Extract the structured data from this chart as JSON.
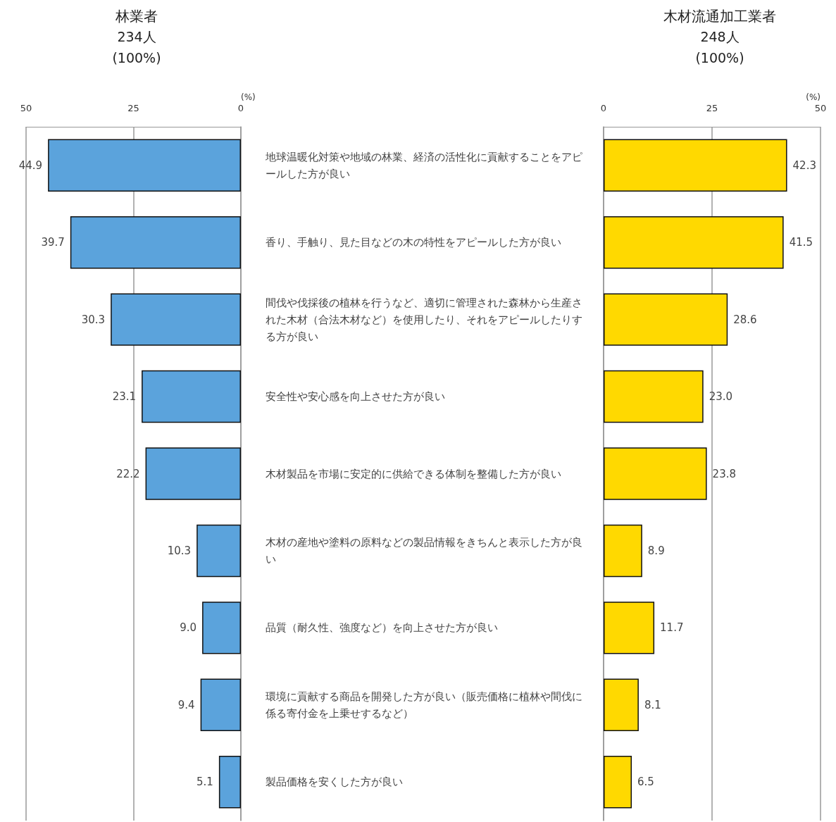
{
  "chart_data": [
    {
      "type": "bar",
      "orientation": "horizontal",
      "title": "林業者",
      "subtitle": "234人\n(100%)",
      "xlabel": "(%)",
      "categories": [
        "地球温暖化対策や地域の林業、経済の活性化に貢献することをアピールした方が良い",
        "香り、手触り、見た目などの木の特性をアピールした方が良い",
        "間伐や伐採後の植林を行うなど、適切に管理された森林から生産された木材（合法木材など）を使用したり、それをアピールしたりする方が良い",
        "安全性や安心感を向上させた方が良い",
        "木材製品を市場に安定的に供給できる体制を整備した方が良い",
        "木材の産地や塗料の原料などの製品情報をきちんと表示した方が良い",
        "品質（耐久性、強度など）を向上させた方が良い",
        "環境に貢献する商品を開発した方が良い（販売価格に植林や間伐に係る寄付金を上乗せするなど）",
        "製品価格を安くした方が良い"
      ],
      "values": [
        44.9,
        39.7,
        30.3,
        23.1,
        22.2,
        10.3,
        9.0,
        9.4,
        5.1
      ],
      "value_labels": [
        "44.9",
        "39.7",
        "30.3",
        "23.1",
        "22.2",
        "10.3",
        "9.0",
        "9.4",
        "5.1"
      ],
      "color": "#5ba3dc",
      "xlim": [
        50,
        0
      ],
      "xticks": [
        50,
        25,
        0
      ],
      "grid": "x"
    },
    {
      "type": "bar",
      "orientation": "horizontal",
      "title": "木材流通加工業者",
      "subtitle": "248人\n(100%)",
      "xlabel": "(%)",
      "categories": [
        "地球温暖化対策や地域の林業、経済の活性化に貢献することをアピールした方が良い",
        "香り、手触り、見た目などの木の特性をアピールした方が良い",
        "間伐や伐採後の植林を行うなど、適切に管理された森林から生産された木材（合法木材など）を使用したり、それをアピールしたりする方が良い",
        "安全性や安心感を向上させた方が良い",
        "木材製品を市場に安定的に供給できる体制を整備した方が良い",
        "木材の産地や塗料の原料などの製品情報をきちんと表示した方が良い",
        "品質（耐久性、強度など）を向上させた方が良い",
        "環境に貢献する商品を開発した方が良い（販売価格に植林や間伐に係る寄付金を上乗せするなど）",
        "製品価格を安くした方が良い"
      ],
      "values": [
        42.3,
        41.5,
        28.6,
        23.0,
        23.8,
        8.9,
        11.7,
        8.1,
        6.5
      ],
      "value_labels": [
        "42.3",
        "41.5",
        "28.6",
        "23.0",
        "23.8",
        "8.9",
        "11.7",
        "8.1",
        "6.5"
      ],
      "color": "#ffd900",
      "xlim": [
        0,
        50
      ],
      "xticks": [
        0,
        25,
        50
      ],
      "grid": "x",
      "tick_labels": "x"
    }
  ]
}
